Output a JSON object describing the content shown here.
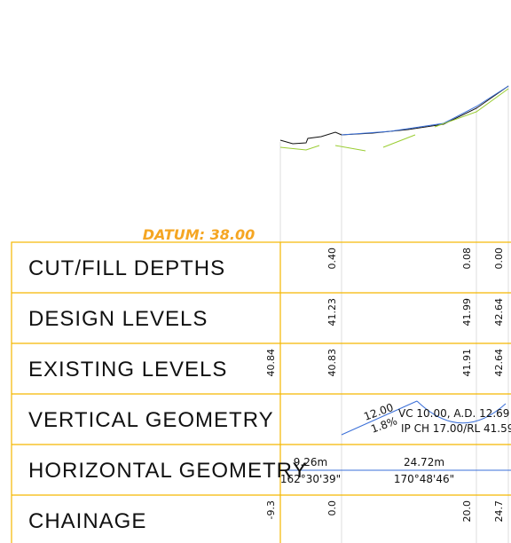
{
  "datum": "DATUM: 38.00",
  "rows": [
    {
      "label": "CUT/FILL DEPTHS",
      "values": [
        "0.40",
        "0.08",
        "0.00"
      ]
    },
    {
      "label": "DESIGN LEVELS",
      "values": [
        "41.23",
        "41.99",
        "42.64"
      ]
    },
    {
      "label": "EXISTING LEVELS",
      "values": [
        "40.84",
        "40.83",
        "41.91",
        "42.64"
      ]
    },
    {
      "label": "VERTICAL GEOMETRY",
      "values": []
    },
    {
      "label": "HORIZONTAL GEOMETRY",
      "values": []
    },
    {
      "label": "CHAINAGE",
      "values": [
        "-9.3",
        "0.0",
        "20.0",
        "24.7"
      ]
    }
  ],
  "vertical_geometry": {
    "length": "12.00",
    "grade": "1.8%",
    "curve": "VC 10.00, A.D. 12.69",
    "ip": "IP CH 17.00/RL 41.59"
  },
  "horizontal_geometry": [
    {
      "length": "9.26m",
      "bearing": "162°30'39\""
    },
    {
      "length": "24.72m",
      "bearing": "170°48'46\""
    }
  ]
}
